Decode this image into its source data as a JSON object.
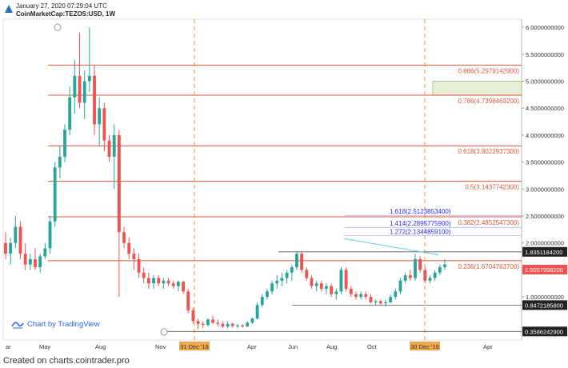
{
  "header": {
    "timestamp": "January 27, 2020 07:29:04 UTC",
    "symbol": "CoinMarketCap:TEZOS:USD, 1W"
  },
  "footer": {
    "text": "Created on charts.cointrader.pro"
  },
  "branding": {
    "text": "Chart by TradingView",
    "icon": "tradingview-logo-icon"
  },
  "colors": {
    "up": "#26a69a",
    "down": "#ef5350",
    "fib": "#d9583b",
    "fib_ext": "#2a2aff",
    "level": "#555555",
    "trendline": "#65c7e8",
    "vline": "#f0a84a",
    "zone": "#e6f0d6"
  },
  "chart_data": {
    "type": "candlestick",
    "title": "",
    "y_axis": {
      "min": 0.2,
      "max": 6.15,
      "side": "right",
      "ticks": [
        1.0,
        1.5,
        2.0,
        2.5,
        3.0,
        3.5,
        4.0,
        4.5,
        5.0,
        5.5,
        6.0
      ],
      "tick_labels": [
        "1.0000000000",
        "1.5000000000",
        "2.0000000000",
        "2.5000000000",
        "3.0000000000",
        "3.5000000000",
        "4.0000000000",
        "4.5000000000",
        "5.0000000000",
        "5.5000000000",
        "6.0000000000"
      ]
    },
    "x_axis": {
      "labels": [
        "ar",
        "May",
        "Aug",
        "Nov",
        "31 Dec '18",
        "Apr",
        "Jun",
        "Aug",
        "Oct",
        "30 Dec '19",
        "Apr"
      ],
      "highlighted": [
        "31 Dec '18",
        "30 Dec '19"
      ]
    },
    "fib_levels": [
      {
        "label": "0.886(5.2979142900)",
        "value": 5.29791429
      },
      {
        "label": "0.786(4.7398469200)",
        "value": 4.73984692
      },
      {
        "label": "0.618(3.8022937300)",
        "value": 3.80229373
      },
      {
        "label": "0.5(3.1437742300)",
        "value": 3.14377423
      },
      {
        "label": "0.382(2.4852547300)",
        "value": 2.48525473
      },
      {
        "label": "0.236(1.6704763700)",
        "value": 1.67047637
      }
    ],
    "fib_extensions": [
      {
        "label": "1.618(2.5123853400)",
        "value": 2.51238534
      },
      {
        "label": "1.414(2.2895775900)",
        "value": 2.28957759
      },
      {
        "label": "1.272(2.1344859100)",
        "value": 2.13448591
      }
    ],
    "price_tags": [
      {
        "label": "1.8351184200",
        "value": 1.83511842,
        "style": "dark"
      },
      {
        "label": "1.5057998200",
        "value": 1.50579982,
        "style": "red"
      },
      {
        "label": "0.8472185800",
        "value": 0.84721858,
        "style": "dark"
      },
      {
        "label": "0.3586242900",
        "value": 0.35862429,
        "style": "dark"
      }
    ],
    "horizontal_levels": [
      1.83511842,
      0.84721858,
      0.35862429
    ],
    "target_zone": [
      4.74,
      5.0
    ],
    "candles": [
      [
        2.0,
        2.2,
        1.7,
        1.8
      ],
      [
        1.8,
        2.1,
        1.6,
        2.0
      ],
      [
        2.0,
        2.5,
        1.9,
        2.3
      ],
      [
        2.3,
        2.4,
        1.7,
        1.8
      ],
      [
        1.8,
        2.0,
        1.5,
        1.6
      ],
      [
        1.6,
        1.8,
        1.5,
        1.7
      ],
      [
        1.7,
        1.9,
        1.5,
        1.55
      ],
      [
        1.55,
        1.8,
        1.45,
        1.75
      ],
      [
        1.75,
        2.0,
        1.7,
        1.9
      ],
      [
        1.9,
        2.5,
        1.8,
        2.4
      ],
      [
        2.4,
        3.5,
        2.3,
        3.4
      ],
      [
        3.4,
        3.8,
        3.2,
        3.6
      ],
      [
        3.6,
        4.2,
        3.5,
        4.1
      ],
      [
        4.1,
        4.9,
        4.0,
        4.7
      ],
      [
        4.7,
        5.4,
        4.4,
        5.1
      ],
      [
        5.1,
        5.9,
        4.5,
        4.6
      ],
      [
        4.6,
        5.2,
        4.3,
        5.0
      ],
      [
        5.0,
        6.0,
        4.8,
        5.1
      ],
      [
        5.1,
        5.3,
        4.0,
        4.2
      ],
      [
        4.2,
        4.7,
        3.8,
        4.5
      ],
      [
        4.5,
        4.6,
        3.7,
        3.9
      ],
      [
        3.9,
        4.0,
        3.5,
        3.6
      ],
      [
        3.6,
        4.2,
        3.0,
        4.0
      ],
      [
        4.0,
        4.1,
        1.0,
        2.2
      ],
      [
        2.2,
        2.3,
        1.9,
        2.0
      ],
      [
        2.0,
        2.1,
        1.7,
        1.8
      ],
      [
        1.8,
        1.9,
        1.5,
        1.7
      ],
      [
        1.7,
        1.8,
        1.35,
        1.45
      ],
      [
        1.45,
        1.55,
        1.25,
        1.35
      ],
      [
        1.35,
        1.45,
        1.15,
        1.25
      ],
      [
        1.25,
        1.4,
        1.15,
        1.35
      ],
      [
        1.35,
        1.4,
        1.2,
        1.25
      ],
      [
        1.25,
        1.35,
        1.15,
        1.3
      ],
      [
        1.3,
        1.35,
        1.2,
        1.25
      ],
      [
        1.25,
        1.3,
        1.15,
        1.2
      ],
      [
        1.2,
        1.3,
        1.1,
        1.28
      ],
      [
        1.28,
        1.3,
        1.05,
        1.1
      ],
      [
        1.1,
        1.15,
        0.7,
        0.75
      ],
      [
        0.75,
        0.8,
        0.5,
        0.55
      ],
      [
        0.55,
        0.6,
        0.4,
        0.5
      ],
      [
        0.5,
        0.55,
        0.42,
        0.48
      ],
      [
        0.48,
        0.6,
        0.45,
        0.58
      ],
      [
        0.58,
        0.65,
        0.5,
        0.52
      ],
      [
        0.52,
        0.58,
        0.45,
        0.5
      ],
      [
        0.5,
        0.55,
        0.42,
        0.45
      ],
      [
        0.45,
        0.55,
        0.42,
        0.5
      ],
      [
        0.5,
        0.52,
        0.43,
        0.46
      ],
      [
        0.46,
        0.5,
        0.42,
        0.47
      ],
      [
        0.47,
        0.5,
        0.43,
        0.45
      ],
      [
        0.45,
        0.55,
        0.44,
        0.52
      ],
      [
        0.52,
        0.62,
        0.5,
        0.6
      ],
      [
        0.6,
        0.9,
        0.58,
        0.85
      ],
      [
        0.85,
        1.05,
        0.8,
        1.0
      ],
      [
        1.0,
        1.15,
        0.95,
        1.1
      ],
      [
        1.1,
        1.3,
        1.05,
        1.25
      ],
      [
        1.25,
        1.4,
        1.15,
        1.3
      ],
      [
        1.3,
        1.45,
        1.2,
        1.35
      ],
      [
        1.35,
        1.5,
        1.25,
        1.45
      ],
      [
        1.45,
        1.6,
        1.3,
        1.55
      ],
      [
        1.55,
        1.85,
        1.5,
        1.8
      ],
      [
        1.8,
        1.85,
        1.45,
        1.5
      ],
      [
        1.5,
        1.55,
        1.3,
        1.35
      ],
      [
        1.35,
        1.4,
        1.15,
        1.2
      ],
      [
        1.2,
        1.3,
        1.1,
        1.25
      ],
      [
        1.25,
        1.3,
        1.1,
        1.15
      ],
      [
        1.15,
        1.25,
        1.05,
        1.2
      ],
      [
        1.2,
        1.25,
        1.0,
        1.05
      ],
      [
        1.05,
        1.15,
        0.95,
        1.1
      ],
      [
        1.1,
        1.55,
        1.05,
        1.5
      ],
      [
        1.5,
        1.55,
        1.1,
        1.15
      ],
      [
        1.15,
        1.2,
        1.0,
        1.05
      ],
      [
        1.05,
        1.1,
        0.95,
        1.0
      ],
      [
        1.0,
        1.1,
        0.95,
        1.05
      ],
      [
        1.05,
        1.1,
        0.95,
        1.0
      ],
      [
        1.0,
        1.05,
        0.88,
        0.9
      ],
      [
        0.9,
        0.95,
        0.85,
        0.92
      ],
      [
        0.92,
        0.95,
        0.85,
        0.88
      ],
      [
        0.88,
        0.95,
        0.82,
        0.9
      ],
      [
        0.9,
        1.05,
        0.88,
        1.0
      ],
      [
        1.0,
        1.15,
        0.95,
        1.1
      ],
      [
        1.1,
        1.35,
        1.05,
        1.3
      ],
      [
        1.3,
        1.45,
        1.25,
        1.4
      ],
      [
        1.4,
        1.5,
        1.3,
        1.35
      ],
      [
        1.35,
        1.8,
        1.3,
        1.7
      ],
      [
        1.7,
        1.75,
        1.45,
        1.5
      ],
      [
        1.5,
        1.55,
        1.25,
        1.3
      ],
      [
        1.3,
        1.4,
        1.25,
        1.35
      ],
      [
        1.35,
        1.5,
        1.3,
        1.45
      ],
      [
        1.45,
        1.6,
        1.4,
        1.55
      ],
      [
        1.55,
        1.7,
        1.5,
        1.6
      ]
    ]
  }
}
